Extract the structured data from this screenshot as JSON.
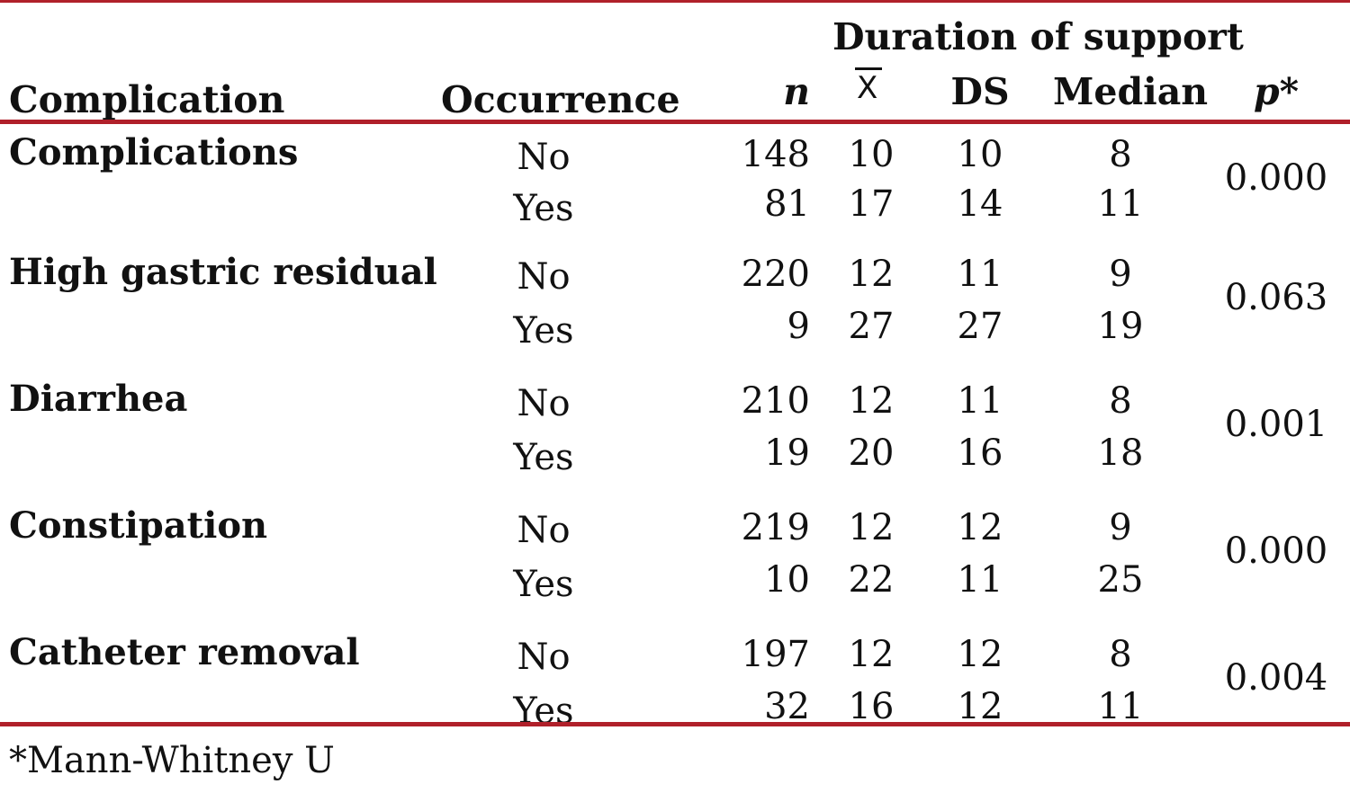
{
  "header": {
    "group_label": "Duration of support",
    "complication": "Complication",
    "occurrence": "Occurrence",
    "n": "n",
    "mean_symbol": "X",
    "ds": "DS",
    "median": "Median",
    "p": "p*"
  },
  "rows": [
    {
      "label": "Complications",
      "p": "0.000",
      "no": {
        "occ": "No",
        "n": "148",
        "x": "10",
        "ds": "10",
        "median": "8"
      },
      "yes": {
        "occ": "Yes",
        "n": "81",
        "x": "17",
        "ds": "14",
        "median": "11"
      }
    },
    {
      "label": "High gastric residual",
      "p": "0.063",
      "no": {
        "occ": "No",
        "n": "220",
        "x": "12",
        "ds": "11",
        "median": "9"
      },
      "yes": {
        "occ": "Yes",
        "n": "9",
        "x": "27",
        "ds": "27",
        "median": "19"
      }
    },
    {
      "label": "Diarrhea",
      "p": "0.001",
      "no": {
        "occ": "No",
        "n": "210",
        "x": "12",
        "ds": "11",
        "median": "8"
      },
      "yes": {
        "occ": "Yes",
        "n": "19",
        "x": "20",
        "ds": "16",
        "median": "18"
      }
    },
    {
      "label": "Constipation",
      "p": "0.000",
      "no": {
        "occ": "No",
        "n": "219",
        "x": "12",
        "ds": "12",
        "median": "9"
      },
      "yes": {
        "occ": "Yes",
        "n": "10",
        "x": "22",
        "ds": "11",
        "median": "25"
      }
    },
    {
      "label": "Catheter removal",
      "p": "0.004",
      "no": {
        "occ": "No",
        "n": "197",
        "x": "12",
        "ds": "12",
        "median": "8"
      },
      "yes": {
        "occ": "Yes",
        "n": "32",
        "x": "16",
        "ds": "12",
        "median": "11"
      }
    }
  ],
  "footnote": "*Mann-Whitney U",
  "colors": {
    "rule": "#b0202a",
    "text": "#111111"
  }
}
